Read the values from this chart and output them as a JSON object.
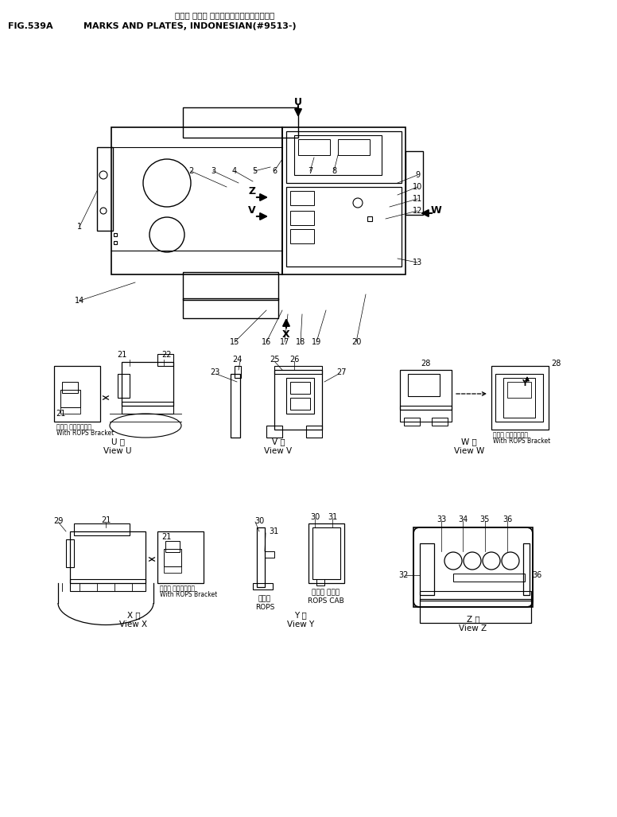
{
  "title_japanese": "マーク オボ・ プレート（インドネシアゴ）",
  "title_fig": "FIG.539A",
  "title_english": "MARKS AND PLATES, INDONESIAN(#9513-)",
  "bg_color": "#ffffff",
  "text_color": "#000000",
  "with_rops_bracket_jp": "ロプス ブラケット付",
  "with_rops_bracket_en": "With ROPS Bracket",
  "view_u_jp": "U 機",
  "view_u_en": "View U",
  "view_v_jp": "V 機",
  "view_v_en": "View V",
  "view_w_jp": "W 機",
  "view_w_en": "View W",
  "view_x_jp": "X 機",
  "view_x_en": "View X",
  "view_y_jp": "Y 機",
  "view_y_en": "View Y",
  "view_z_jp": "Z 機",
  "view_z_en": "View Z",
  "rops_jp": "ロプス",
  "rops_en": "ROPS",
  "rops_cab_jp": "ロプス キャブ",
  "rops_cab_en": "ROPS CAB"
}
